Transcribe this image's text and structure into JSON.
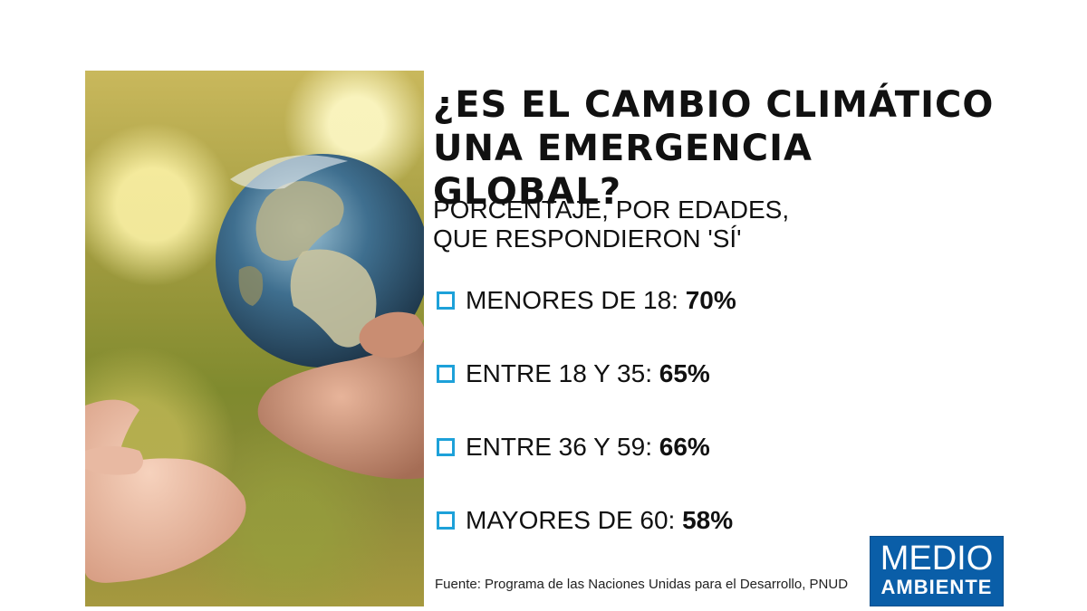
{
  "title": {
    "line1": "¿ES EL CAMBIO CLIMÁTICO",
    "line2": "UNA EMERGENCIA GLOBAL?"
  },
  "subtitle": {
    "line1": "PORCENTAJE, POR EDADES,",
    "line2": "QUE RESPONDIERON 'SÍ'"
  },
  "items": [
    {
      "label": "MENORES DE 18:",
      "value": "70%"
    },
    {
      "label": "ENTRE 18 Y 35:",
      "value": "65%"
    },
    {
      "label": "ENTRE 36 Y 59:",
      "value": "66%"
    },
    {
      "label": "MAYORES DE 60:",
      "value": "58%"
    }
  ],
  "source": "Fuente: Programa de las Naciones Unidas para el Desarrollo, PNUD",
  "logo": {
    "line1": "MEDIO",
    "line2": "AMBIENTE"
  },
  "colors": {
    "bullet": "#1da1d9",
    "logo_bg": "#0a5ea8"
  }
}
